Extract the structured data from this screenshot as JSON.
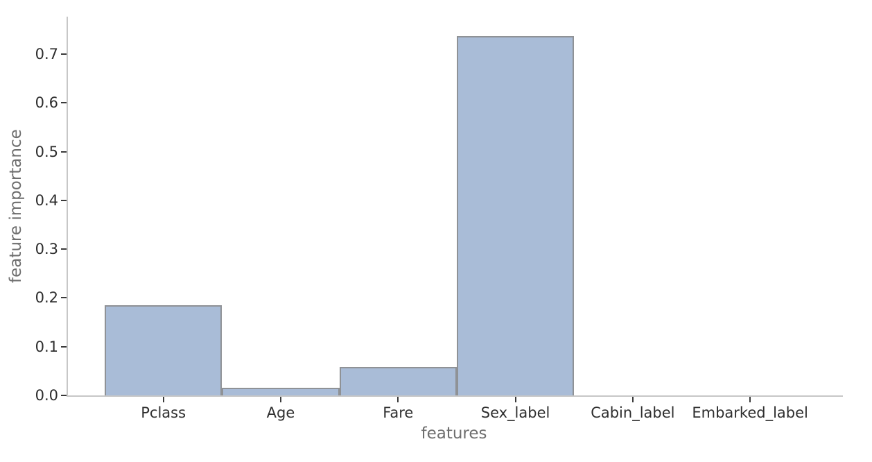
{
  "figure": {
    "background_color": "#ffffff"
  },
  "chart_data": {
    "type": "bar",
    "title": "",
    "xlabel": "features",
    "ylabel": "feature importance",
    "categories": [
      "Pclass",
      "Age",
      "Fare",
      "Sex_label",
      "Cabin_label",
      "Embarked_label"
    ],
    "values": [
      0.185,
      0.016,
      0.058,
      0.737,
      0.0,
      0.0
    ],
    "ylim": [
      0,
      0.777
    ],
    "yticks": [
      0.0,
      0.1,
      0.2,
      0.3,
      0.4,
      0.5,
      0.6,
      0.7
    ],
    "grid": false,
    "legend": "none",
    "colors": {
      "bar_fill": "#a9bcd7",
      "bar_edge": "#8f9296",
      "spine": "#c7c7c7",
      "tick_mark": "#3a3a3a",
      "tick_label": "#2e2e2e",
      "axis_label": "#6e6e6e"
    }
  }
}
